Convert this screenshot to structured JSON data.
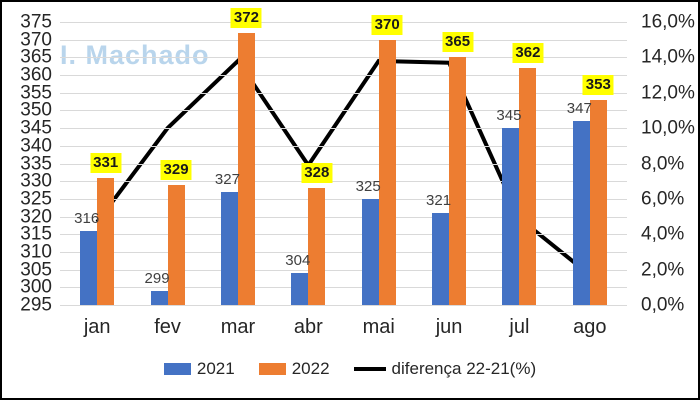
{
  "watermark": "I. Machado",
  "chart_data": {
    "type": "bar",
    "subtype": "grouped-bars-with-line-overlay",
    "categories": [
      "jan",
      "fev",
      "mar",
      "abr",
      "mai",
      "jun",
      "jul",
      "ago"
    ],
    "series": [
      {
        "name": "2021",
        "chart": "bar",
        "color": "#4472C4",
        "axis": "left",
        "values": [
          316,
          299,
          327,
          304,
          325,
          321,
          345,
          347
        ]
      },
      {
        "name": "2022",
        "chart": "bar",
        "color": "#ED7D31",
        "axis": "left",
        "label_background": "#FFFF00",
        "values": [
          331,
          329,
          372,
          328,
          370,
          365,
          362,
          353
        ]
      },
      {
        "name": "diferença 22-21(%)",
        "chart": "line",
        "color": "#000000",
        "axis": "right",
        "values": [
          4.7,
          10.0,
          13.8,
          7.9,
          13.8,
          13.7,
          4.9,
          1.7
        ]
      }
    ],
    "left_axis": {
      "min": 295,
      "max": 375,
      "step": 5,
      "ticks": [
        "375",
        "370",
        "365",
        "360",
        "355",
        "350",
        "345",
        "340",
        "335",
        "330",
        "325",
        "320",
        "315",
        "310",
        "305",
        "300",
        "295"
      ]
    },
    "right_axis": {
      "min": 0,
      "max": 16,
      "step": 2,
      "ticks": [
        "16,0%",
        "14,0%",
        "12,0%",
        "10,0%",
        "8,0%",
        "6,0%",
        "4,0%",
        "2,0%",
        "0,0%"
      ]
    },
    "grid": true,
    "gridline_color": "#D9D9D9",
    "axis_text_color": "#262626",
    "legend_position": "bottom"
  }
}
